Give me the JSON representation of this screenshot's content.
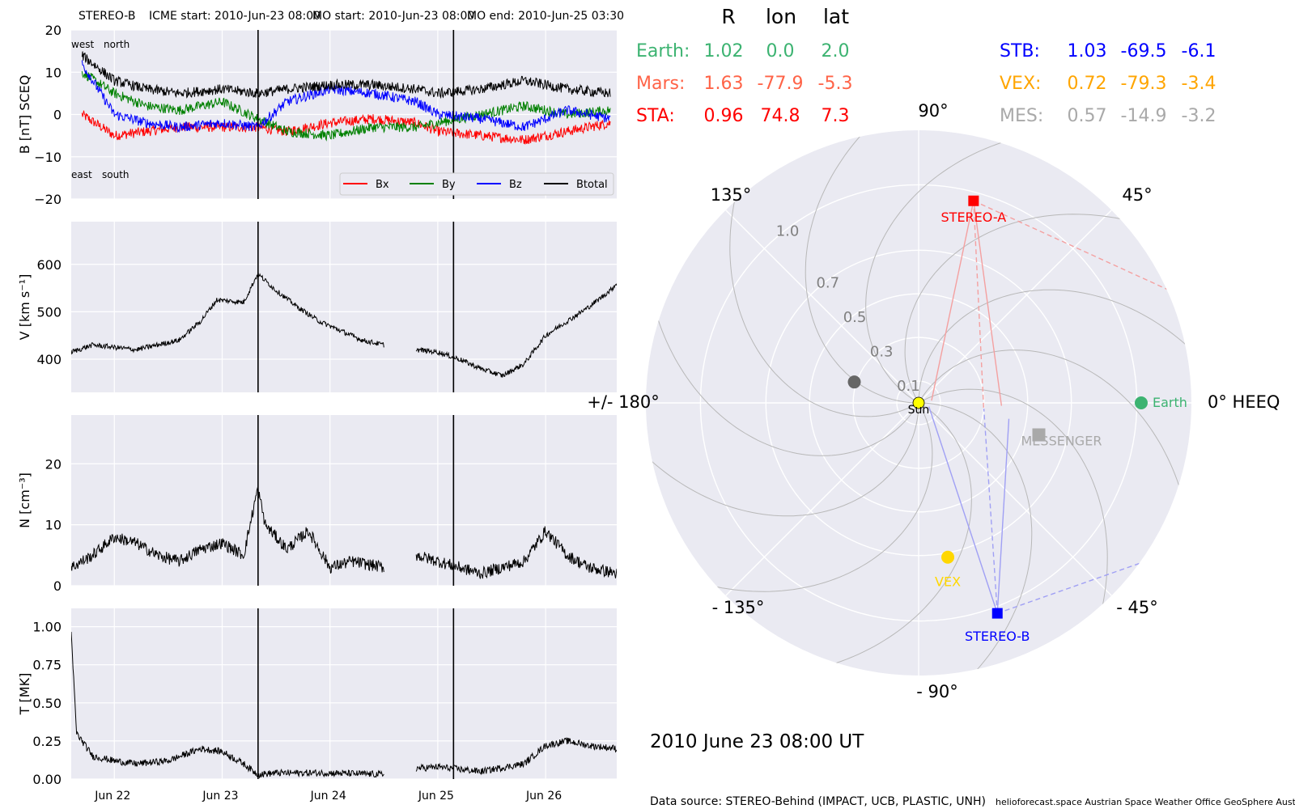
{
  "header": {
    "spacecraft": "STEREO-B",
    "icme_start": "ICME start: 2010-Jun-23 08:00",
    "mo_start": "MO start: 2010-Jun-23 08:00",
    "mo_end": "MO end: 2010-Jun-25 03:30"
  },
  "positions_table": {
    "headers": [
      "R",
      "lon",
      "lat"
    ],
    "rows": [
      {
        "label": "Earth:",
        "r": "1.02",
        "lon": "0.0",
        "lat": "2.0",
        "color": "#3cb371"
      },
      {
        "label": "Mars:",
        "r": "1.63",
        "lon": "-77.9",
        "lat": "-5.3",
        "color": "#ff6347"
      },
      {
        "label": "STA:",
        "r": "0.96",
        "lon": "74.8",
        "lat": "7.3",
        "color": "#ff0000"
      },
      {
        "label": "STB:",
        "r": "1.03",
        "lon": "-69.5",
        "lat": "-6.1",
        "color": "#0000ff"
      },
      {
        "label": "VEX:",
        "r": "0.72",
        "lon": "-79.3",
        "lat": "-3.4",
        "color": "#ffa500"
      },
      {
        "label": "MES:",
        "r": "0.57",
        "lon": "-14.9",
        "lat": "-3.2",
        "color": "#a9a9a9"
      }
    ]
  },
  "date_label": "2010 June 23  08:00 UT",
  "footer": {
    "source": "Data source: STEREO-Behind (IMPACT, UCB, PLASTIC, UNH)",
    "credits": "helioforecast.space   Austrian Space Weather Office   GeoSphere Austria"
  },
  "chart_data": [
    {
      "type": "line",
      "name": "magnetic-field",
      "ylabel": "B [nT] SCEQ",
      "ylim": [
        -20,
        20
      ],
      "yticks": [
        "20",
        "10",
        "0",
        "−10",
        "−20"
      ],
      "yticks_values": [
        20,
        10,
        0,
        -10,
        -20
      ],
      "annotations": [
        "west",
        "north",
        "east",
        "south"
      ],
      "legend": [
        "Bx",
        "By",
        "Bz",
        "Btotal"
      ],
      "legend_placement": "lower-right",
      "series": [
        {
          "name": "Bx",
          "color": "#ff0000",
          "x": [
            21.7,
            22.0,
            22.3,
            22.6,
            23.0,
            23.33,
            23.6,
            24.0,
            24.4,
            24.8,
            25.0,
            25.4,
            25.8,
            26.2,
            26.6
          ],
          "values": [
            0,
            -5,
            -4,
            -3,
            -3,
            -3,
            -4,
            -2,
            -1,
            -2,
            -4,
            -5,
            -6,
            -4,
            -2
          ]
        },
        {
          "name": "By",
          "color": "#008000",
          "x": [
            21.7,
            22.0,
            22.3,
            22.6,
            23.0,
            23.33,
            23.6,
            24.0,
            24.4,
            24.8,
            25.0,
            25.4,
            25.8,
            26.2,
            26.6
          ],
          "values": [
            10,
            5,
            2,
            1,
            3,
            -1,
            -4,
            -5,
            -3,
            -3,
            -2,
            0,
            2,
            0,
            1
          ]
        },
        {
          "name": "Bz",
          "color": "#0000ff",
          "x": [
            21.7,
            22.0,
            22.3,
            22.6,
            23.0,
            23.33,
            23.6,
            24.0,
            24.4,
            24.8,
            25.0,
            25.4,
            25.8,
            26.2,
            26.6
          ],
          "values": [
            12,
            0,
            -2,
            -3,
            -2,
            -3,
            3,
            6,
            5,
            3,
            0,
            -1,
            -3,
            1,
            -1
          ]
        },
        {
          "name": "Btotal",
          "color": "#000000",
          "x": [
            21.7,
            22.0,
            22.3,
            22.6,
            23.0,
            23.33,
            23.6,
            24.0,
            24.4,
            24.8,
            25.0,
            25.4,
            25.8,
            26.2,
            26.6
          ],
          "values": [
            14,
            8,
            6,
            5,
            6,
            5,
            6,
            7,
            7,
            6,
            5,
            6,
            8,
            6,
            5
          ]
        }
      ]
    },
    {
      "type": "line",
      "name": "speed",
      "ylabel": "V [km s⁻¹]",
      "ylim": [
        330,
        690
      ],
      "yticks": [
        "600",
        "500",
        "400"
      ],
      "yticks_values": [
        600,
        500,
        400
      ],
      "series": [
        {
          "name": "V",
          "color": "#000000",
          "x": [
            21.6,
            21.8,
            22.0,
            22.2,
            22.4,
            22.6,
            22.8,
            22.95,
            23.2,
            23.33,
            23.5,
            23.7,
            23.9,
            24.1,
            24.3,
            24.5
          ],
          "values": [
            415,
            430,
            425,
            420,
            430,
            440,
            480,
            525,
            520,
            580,
            545,
            510,
            480,
            460,
            440,
            430
          ]
        },
        {
          "name": "V",
          "color": "#000000",
          "x": [
            24.8,
            25.0,
            25.2,
            25.4,
            25.6,
            25.8,
            26.0,
            26.2,
            26.4,
            26.6,
            26.66
          ],
          "values": [
            420,
            415,
            400,
            380,
            365,
            390,
            450,
            480,
            510,
            545,
            560
          ]
        }
      ]
    },
    {
      "type": "line",
      "name": "density",
      "ylabel": "N [cm⁻³]",
      "ylim": [
        0,
        28
      ],
      "yticks": [
        "20",
        "10",
        "0"
      ],
      "yticks_values": [
        20,
        10,
        0
      ],
      "series": [
        {
          "name": "N",
          "color": "#000000",
          "x": [
            21.6,
            21.8,
            22.0,
            22.2,
            22.4,
            22.6,
            22.8,
            23.0,
            23.2,
            23.33,
            23.4,
            23.6,
            23.8,
            24.0,
            24.2,
            24.5
          ],
          "values": [
            3,
            5,
            8,
            7,
            5,
            4,
            6,
            7,
            5,
            16,
            10,
            6,
            9,
            3,
            4,
            3
          ]
        },
        {
          "name": "N",
          "color": "#000000",
          "x": [
            24.8,
            25.0,
            25.2,
            25.4,
            25.6,
            25.8,
            26.0,
            26.2,
            26.4,
            26.66
          ],
          "values": [
            5,
            4,
            3,
            2,
            3,
            4,
            9,
            5,
            3,
            2
          ]
        }
      ]
    },
    {
      "type": "line",
      "name": "temperature",
      "ylabel": "T [MK]",
      "ylim": [
        0,
        1.12
      ],
      "yticks": [
        "1.00",
        "0.75",
        "0.50",
        "0.25",
        "0.00"
      ],
      "yticks_values": [
        1.0,
        0.75,
        0.5,
        0.25,
        0.0
      ],
      "xlabels": [
        "Jun 22",
        "Jun 23",
        "Jun 24",
        "Jun 25",
        "Jun 26"
      ],
      "xticks_values": [
        22,
        23,
        24,
        25,
        26
      ],
      "xlim": [
        21.6,
        26.66
      ],
      "series": [
        {
          "name": "T",
          "color": "#000000",
          "x": [
            21.6,
            21.65,
            21.8,
            22.0,
            22.2,
            22.5,
            22.8,
            23.0,
            23.2,
            23.33,
            23.5,
            24.0,
            24.5
          ],
          "values": [
            0.95,
            0.3,
            0.15,
            0.12,
            0.1,
            0.12,
            0.2,
            0.18,
            0.1,
            0.03,
            0.04,
            0.04,
            0.03
          ]
        },
        {
          "name": "T",
          "color": "#000000",
          "x": [
            24.8,
            25.0,
            25.4,
            25.8,
            26.0,
            26.2,
            26.4,
            26.66
          ],
          "values": [
            0.07,
            0.08,
            0.05,
            0.1,
            0.22,
            0.25,
            0.22,
            0.2
          ]
        }
      ]
    },
    {
      "type": "scatter",
      "name": "polar-position-plot",
      "projection": "polar",
      "angle_labels": [
        "0° HEEQ",
        "45°",
        "90°",
        "135°",
        "+/- 180°",
        "- 135°",
        "- 90°",
        "- 45°"
      ],
      "angle_values_deg": [
        0,
        45,
        90,
        135,
        180,
        -135,
        -90,
        -45
      ],
      "radial_labels": [
        "0.1",
        "0.3",
        "0.5",
        "0.7",
        "1.0"
      ],
      "radial_values": [
        0.1,
        0.3,
        0.5,
        0.7,
        1.0
      ],
      "rmax": 1.25,
      "points": [
        {
          "name": "Sun",
          "r": 0.0,
          "lon": 0.0,
          "color": "#ffff00",
          "label": "Sun"
        },
        {
          "name": "Earth",
          "r": 1.02,
          "lon": 0.0,
          "color": "#3cb371",
          "label": "Earth"
        },
        {
          "name": "STEREO-A",
          "r": 0.96,
          "lon": 74.8,
          "color": "#ff0000",
          "label": "STEREO-A"
        },
        {
          "name": "STEREO-B",
          "r": 1.03,
          "lon": -69.5,
          "color": "#0000ff",
          "label": "STEREO-B"
        },
        {
          "name": "VEX",
          "r": 0.72,
          "lon": -79.3,
          "color": "#ffd700",
          "label": "VEX"
        },
        {
          "name": "MESSENGER",
          "r": 0.57,
          "lon": -14.9,
          "color": "#a9a9a9",
          "label": "MESSENGER"
        },
        {
          "name": "Mercury",
          "r": 0.31,
          "lon": 162.0,
          "color": "#666666",
          "label": ""
        }
      ]
    }
  ]
}
